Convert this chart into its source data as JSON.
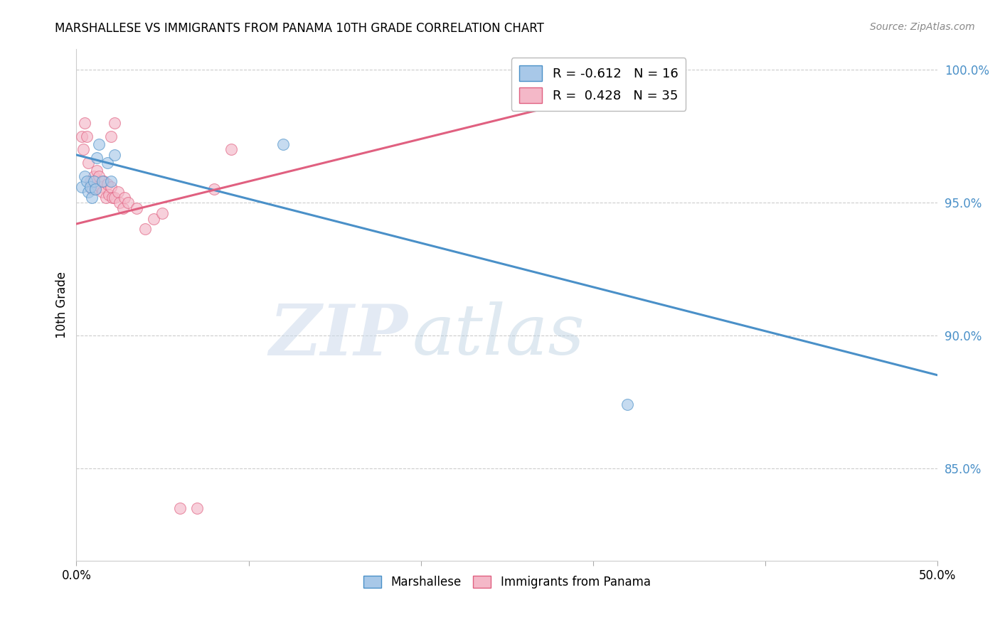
{
  "title": "MARSHALLESE VS IMMIGRANTS FROM PANAMA 10TH GRADE CORRELATION CHART",
  "source": "Source: ZipAtlas.com",
  "ylabel": "10th Grade",
  "xlim": [
    0.0,
    0.5
  ],
  "ylim": [
    0.815,
    1.008
  ],
  "yticks": [
    0.85,
    0.9,
    0.95,
    1.0
  ],
  "ytick_labels": [
    "85.0%",
    "90.0%",
    "95.0%",
    "100.0%"
  ],
  "xticks": [
    0.0,
    0.1,
    0.2,
    0.3,
    0.4,
    0.5
  ],
  "xtick_labels": [
    "0.0%",
    "",
    "",
    "",
    "",
    "50.0%"
  ],
  "blue_scatter_color": "#a8c8e8",
  "pink_scatter_color": "#f4b8c8",
  "blue_line_color": "#4a90c8",
  "pink_line_color": "#e06080",
  "legend_blue_label": "R = -0.612   N = 16",
  "legend_pink_label": "R =  0.428   N = 35",
  "marshallese_x": [
    0.003,
    0.005,
    0.006,
    0.007,
    0.008,
    0.009,
    0.01,
    0.011,
    0.012,
    0.013,
    0.015,
    0.018,
    0.02,
    0.022,
    0.12,
    0.32
  ],
  "marshallese_y": [
    0.956,
    0.96,
    0.958,
    0.954,
    0.956,
    0.952,
    0.958,
    0.955,
    0.967,
    0.972,
    0.958,
    0.965,
    0.958,
    0.968,
    0.972,
    0.874
  ],
  "panama_x": [
    0.003,
    0.004,
    0.005,
    0.006,
    0.007,
    0.008,
    0.009,
    0.01,
    0.011,
    0.012,
    0.013,
    0.014,
    0.015,
    0.016,
    0.017,
    0.018,
    0.019,
    0.02,
    0.021,
    0.022,
    0.024,
    0.025,
    0.027,
    0.028,
    0.03,
    0.035,
    0.04,
    0.045,
    0.05,
    0.06,
    0.07,
    0.08,
    0.09,
    0.02,
    0.022
  ],
  "panama_y": [
    0.975,
    0.97,
    0.98,
    0.975,
    0.965,
    0.958,
    0.955,
    0.96,
    0.955,
    0.962,
    0.96,
    0.956,
    0.954,
    0.958,
    0.952,
    0.957,
    0.953,
    0.956,
    0.952,
    0.952,
    0.954,
    0.95,
    0.948,
    0.952,
    0.95,
    0.948,
    0.94,
    0.944,
    0.946,
    0.835,
    0.835,
    0.955,
    0.97,
    0.975,
    0.98
  ],
  "blue_trend_x": [
    0.0,
    0.5
  ],
  "blue_trend_y": [
    0.968,
    0.885
  ],
  "pink_trend_x": [
    0.0,
    0.35
  ],
  "pink_trend_y": [
    0.942,
    0.998
  ],
  "watermark_zip": "ZIP",
  "watermark_atlas": "atlas",
  "zip_color": "#c8d8e8",
  "atlas_color": "#b0c8e0",
  "legend_fontsize": 13,
  "title_fontsize": 12,
  "marker_size": 130,
  "marker_alpha": 0.65
}
